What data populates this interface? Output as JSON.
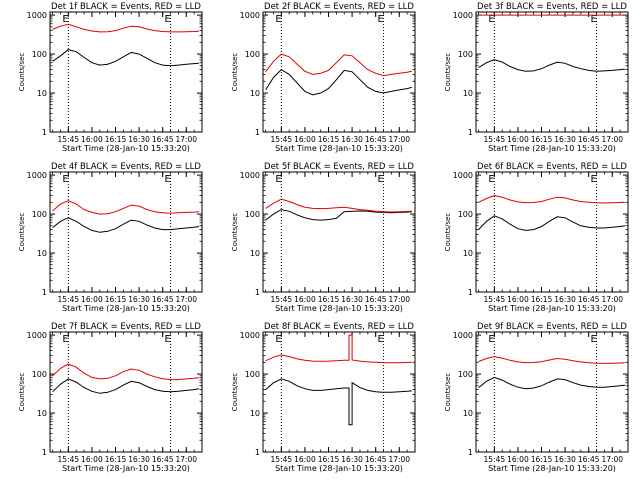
{
  "colors": {
    "events": "#000000",
    "lld": "#e00000",
    "axis": "#000000",
    "background": "#ffffff"
  },
  "shared": {
    "ylabel": "Counts/sec",
    "xlabel": "Start Time (28-Jan-10 15:33:20)",
    "x_ticks": [
      "15:45",
      "16:00",
      "16:15",
      "16:30",
      "16:45",
      "17:00"
    ],
    "y_ticks": [
      "1",
      "10",
      "100",
      "1000"
    ],
    "x_range": [
      "15:33:20",
      "17:10"
    ],
    "y_range": [
      1,
      1200
    ],
    "y_scale": "log",
    "vertical_markers": {
      "times": [
        "15:45",
        "16:50"
      ],
      "labels": [
        "E",
        "E"
      ]
    }
  },
  "chart_data": [
    {
      "type": "line",
      "title": "Det 1f BLACK = Events, RED = LLD",
      "x": [
        "15:35",
        "15:40",
        "15:45",
        "15:50",
        "15:55",
        "16:00",
        "16:05",
        "16:10",
        "16:15",
        "16:20",
        "16:25",
        "16:30",
        "16:35",
        "16:40",
        "16:45",
        "16:50",
        "16:55",
        "17:00",
        "17:05",
        "17:08"
      ],
      "series": [
        {
          "name": "Events",
          "values": [
            65,
            90,
            130,
            115,
            82,
            60,
            52,
            55,
            65,
            85,
            110,
            100,
            78,
            60,
            52,
            50,
            52,
            55,
            57,
            58
          ]
        },
        {
          "name": "LLD",
          "values": [
            430,
            520,
            580,
            500,
            430,
            390,
            370,
            375,
            400,
            460,
            520,
            500,
            440,
            400,
            380,
            370,
            370,
            375,
            380,
            385
          ]
        }
      ]
    },
    {
      "type": "line",
      "title": "Det 2f BLACK = Events, RED = LLD",
      "x": [
        "15:35",
        "15:40",
        "15:45",
        "15:50",
        "15:55",
        "16:00",
        "16:05",
        "16:10",
        "16:15",
        "16:20",
        "16:25",
        "16:30",
        "16:35",
        "16:40",
        "16:45",
        "16:50",
        "16:55",
        "17:00",
        "17:05",
        "17:08"
      ],
      "series": [
        {
          "name": "Events",
          "values": [
            12,
            25,
            40,
            30,
            18,
            11,
            9,
            10,
            13,
            22,
            38,
            35,
            22,
            14,
            11,
            10,
            11,
            12,
            13,
            14
          ]
        },
        {
          "name": "LLD",
          "values": [
            35,
            65,
            100,
            85,
            55,
            36,
            30,
            32,
            38,
            60,
            95,
            90,
            60,
            40,
            32,
            28,
            30,
            32,
            34,
            36
          ]
        }
      ]
    },
    {
      "type": "line",
      "title": "Det 3f BLACK = Events, RED = LLD",
      "x": [
        "15:35",
        "15:40",
        "15:45",
        "15:50",
        "15:55",
        "16:00",
        "16:05",
        "16:10",
        "16:15",
        "16:20",
        "16:25",
        "16:30",
        "16:35",
        "16:40",
        "16:45",
        "16:50",
        "16:55",
        "17:00",
        "17:05",
        "17:08"
      ],
      "series": [
        {
          "name": "Events",
          "values": [
            45,
            60,
            72,
            62,
            48,
            40,
            36,
            37,
            42,
            52,
            62,
            58,
            48,
            42,
            38,
            36,
            37,
            38,
            40,
            41
          ]
        },
        {
          "name": "LLD",
          "values": [
            1000,
            1000,
            1000,
            1000,
            1000,
            1000,
            1000,
            1000,
            1000,
            1000,
            1000,
            1000,
            1000,
            1000,
            1000,
            1000,
            1000,
            1000,
            1000,
            1000
          ]
        }
      ]
    },
    {
      "type": "line",
      "title": "Det 4f BLACK = Events, RED = LLD",
      "x": [
        "15:35",
        "15:40",
        "15:45",
        "15:50",
        "15:55",
        "16:00",
        "16:05",
        "16:10",
        "16:15",
        "16:20",
        "16:25",
        "16:30",
        "16:35",
        "16:40",
        "16:45",
        "16:50",
        "16:55",
        "17:00",
        "17:05",
        "17:08"
      ],
      "series": [
        {
          "name": "Events",
          "values": [
            45,
            65,
            80,
            65,
            48,
            38,
            34,
            36,
            42,
            55,
            70,
            65,
            52,
            44,
            40,
            40,
            42,
            44,
            46,
            48
          ]
        },
        {
          "name": "LLD",
          "values": [
            120,
            180,
            220,
            180,
            130,
            110,
            100,
            102,
            115,
            140,
            170,
            160,
            130,
            115,
            108,
            105,
            108,
            110,
            112,
            115
          ]
        }
      ]
    },
    {
      "type": "line",
      "title": "Det 5f BLACK = Events, RED = LLD",
      "x": [
        "15:35",
        "15:40",
        "15:45",
        "15:50",
        "15:55",
        "16:00",
        "16:05",
        "16:10",
        "16:15",
        "16:20",
        "16:25",
        "16:30",
        "16:35",
        "16:40",
        "16:45",
        "16:50",
        "16:55",
        "17:00",
        "17:05",
        "17:08"
      ],
      "series": [
        {
          "name": "Events",
          "values": [
            70,
            100,
            130,
            118,
            95,
            80,
            72,
            70,
            72,
            78,
            115,
            118,
            120,
            118,
            112,
            110,
            108,
            110,
            112,
            115
          ]
        },
        {
          "name": "LLD",
          "values": [
            140,
            190,
            240,
            210,
            175,
            150,
            140,
            138,
            140,
            145,
            150,
            140,
            130,
            125,
            118,
            115,
            113,
            115,
            117,
            118
          ]
        }
      ]
    },
    {
      "type": "line",
      "title": "Det 6f BLACK = Events, RED = LLD",
      "x": [
        "15:35",
        "15:40",
        "15:45",
        "15:50",
        "15:55",
        "16:00",
        "16:05",
        "16:10",
        "16:15",
        "16:20",
        "16:25",
        "16:30",
        "16:35",
        "16:40",
        "16:45",
        "16:50",
        "16:55",
        "17:00",
        "17:05",
        "17:08"
      ],
      "series": [
        {
          "name": "Events",
          "values": [
            40,
            65,
            90,
            75,
            55,
            42,
            38,
            40,
            48,
            65,
            85,
            80,
            62,
            50,
            46,
            44,
            44,
            46,
            48,
            50
          ]
        },
        {
          "name": "LLD",
          "values": [
            200,
            250,
            300,
            270,
            230,
            205,
            195,
            198,
            210,
            240,
            270,
            260,
            230,
            210,
            200,
            195,
            192,
            195,
            198,
            200
          ]
        }
      ]
    },
    {
      "type": "line",
      "title": "Det 7f BLACK = Events, RED = LLD",
      "x": [
        "15:35",
        "15:40",
        "15:45",
        "15:50",
        "15:55",
        "16:00",
        "16:05",
        "16:10",
        "16:15",
        "16:20",
        "16:25",
        "16:30",
        "16:35",
        "16:40",
        "16:45",
        "16:50",
        "16:55",
        "17:00",
        "17:05",
        "17:08"
      ],
      "series": [
        {
          "name": "Events",
          "values": [
            35,
            55,
            75,
            62,
            45,
            36,
            32,
            34,
            40,
            52,
            65,
            60,
            48,
            40,
            36,
            35,
            36,
            38,
            40,
            42
          ]
        },
        {
          "name": "LLD",
          "values": [
            90,
            140,
            180,
            150,
            105,
            82,
            75,
            78,
            90,
            115,
            135,
            125,
            100,
            85,
            76,
            72,
            72,
            75,
            78,
            80
          ]
        }
      ]
    },
    {
      "type": "line",
      "title": "Det 8f BLACK = Events, RED = LLD",
      "x": [
        "15:35",
        "15:40",
        "15:45",
        "15:50",
        "15:55",
        "16:00",
        "16:05",
        "16:10",
        "16:15",
        "16:20",
        "16:25",
        "16:28",
        "16:28",
        "16:30",
        "16:30",
        "16:35",
        "16:40",
        "16:45",
        "16:50",
        "16:55",
        "17:00",
        "17:05",
        "17:08"
      ],
      "series": [
        {
          "name": "Events",
          "values": [
            40,
            60,
            75,
            65,
            50,
            42,
            38,
            38,
            40,
            42,
            44,
            44,
            5,
            5,
            60,
            45,
            38,
            35,
            34,
            34,
            35,
            36,
            37
          ]
        },
        {
          "name": "LLD",
          "values": [
            220,
            270,
            310,
            280,
            245,
            225,
            215,
            212,
            215,
            220,
            225,
            225,
            1000,
            1000,
            230,
            215,
            205,
            200,
            196,
            195,
            196,
            198,
            200
          ]
        }
      ]
    },
    {
      "type": "line",
      "title": "Det 9f BLACK = Events, RED = LLD",
      "x": [
        "15:35",
        "15:40",
        "15:45",
        "15:50",
        "15:55",
        "16:00",
        "16:05",
        "16:10",
        "16:15",
        "16:20",
        "16:25",
        "16:30",
        "16:35",
        "16:40",
        "16:45",
        "16:50",
        "16:55",
        "17:00",
        "17:05",
        "17:08"
      ],
      "series": [
        {
          "name": "Events",
          "values": [
            45,
            65,
            82,
            70,
            55,
            46,
            42,
            44,
            50,
            62,
            75,
            72,
            60,
            52,
            48,
            46,
            46,
            48,
            50,
            52
          ]
        },
        {
          "name": "LLD",
          "values": [
            210,
            250,
            280,
            255,
            225,
            205,
            195,
            198,
            208,
            230,
            250,
            240,
            220,
            205,
            195,
            190,
            188,
            190,
            192,
            195
          ]
        }
      ]
    }
  ]
}
